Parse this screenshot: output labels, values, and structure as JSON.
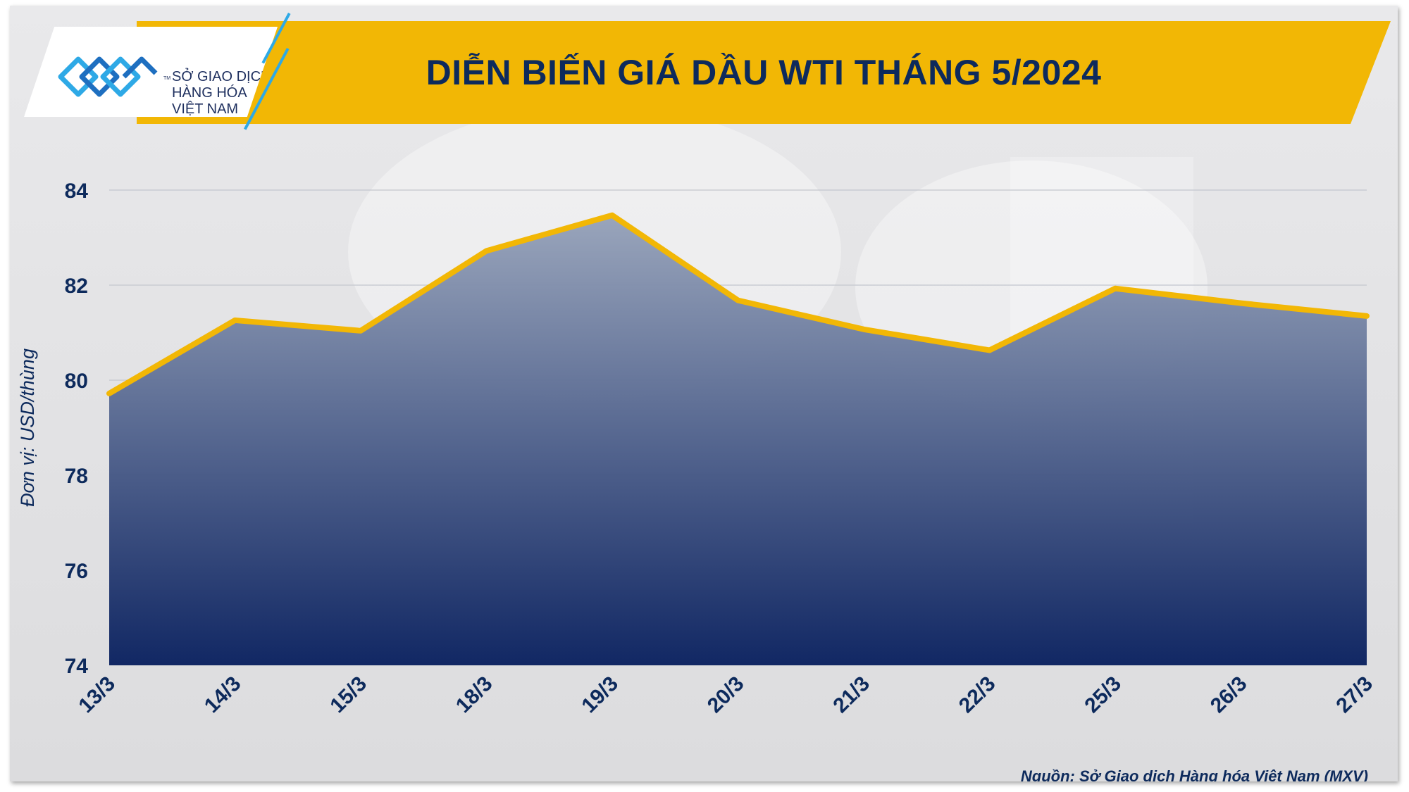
{
  "header": {
    "title": "DIỄN BIẾN GIÁ DẦU WTI THÁNG 5/2024",
    "logo_lines": [
      "SỞ GIAO DỊCH",
      "HÀNG HÓA",
      "VIỆT NAM"
    ],
    "logo_tm": "TM"
  },
  "footer": {
    "source": "Nguồn: Sở Giao dịch Hàng hóa Việt Nam (MXV)"
  },
  "colors": {
    "banner": "#f2b705",
    "title": "#0d2a5c",
    "line": "#f2b705",
    "area_top": "#97a3ba",
    "area_bottom": "#0b2260"
  },
  "chart_data": {
    "type": "area",
    "title": "DIỄN BIẾN GIÁ DẦU WTI THÁNG 5/2024",
    "ylabel": "Đơn vị: USD/thùng",
    "xlabel": "",
    "categories": [
      "13/3",
      "14/3",
      "15/3",
      "18/3",
      "19/3",
      "20/3",
      "21/3",
      "22/3",
      "25/3",
      "26/3",
      "27/3"
    ],
    "values": [
      79.72,
      81.26,
      81.04,
      82.72,
      83.47,
      81.68,
      81.07,
      80.63,
      81.93,
      81.62,
      81.35
    ],
    "ylim": [
      74,
      84
    ],
    "yticks": [
      "74",
      "76",
      "78",
      "80",
      "82",
      "84"
    ],
    "grid": true,
    "legend": "none"
  }
}
